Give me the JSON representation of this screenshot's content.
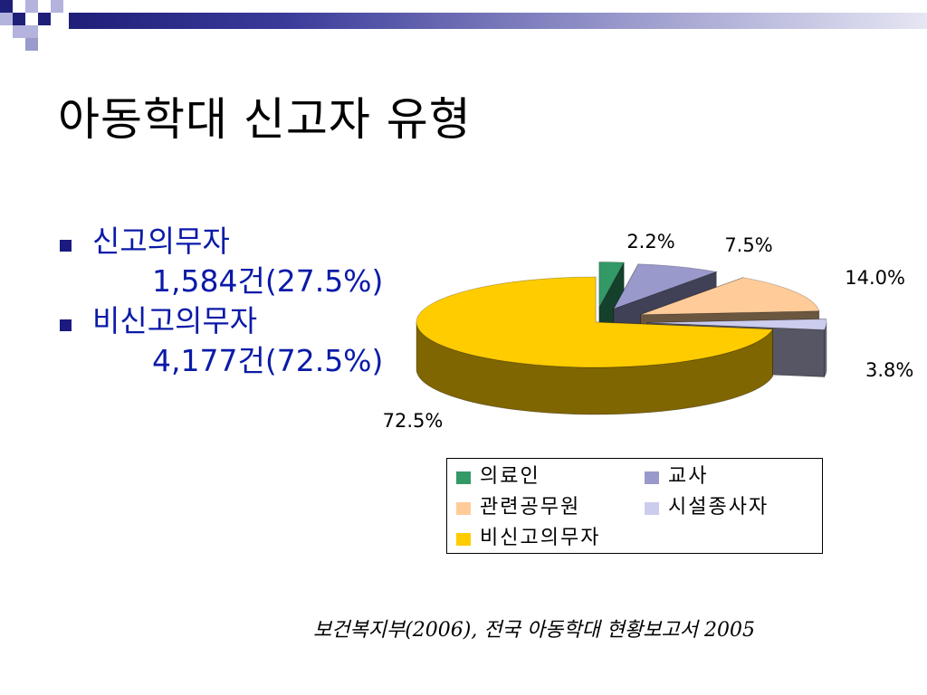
{
  "slide": {
    "title": "아동학대 신고자 유형",
    "source": "보건복지부(2006), 전국 아동학대 현황보고서 2005"
  },
  "bullets": [
    {
      "name": "신고의무자",
      "value": "1,584건(27.5%)"
    },
    {
      "name": "비신고의무자",
      "value": "4,177건(72.5%)"
    }
  ],
  "colors": {
    "bullet": "#1a1a80",
    "bullet_text": "#0a1aa8",
    "accent_dark": "#1f1f7a"
  },
  "chart_data": {
    "type": "pie",
    "style": "3d-exploded",
    "series": [
      {
        "name": "의료인",
        "value": 2.2,
        "label": "2.2%",
        "color": "#339966"
      },
      {
        "name": "교사",
        "value": 7.5,
        "label": "7.5%",
        "color": "#9999cc"
      },
      {
        "name": "관련공무원",
        "value": 14.0,
        "label": "14.0%",
        "color": "#ffcc99"
      },
      {
        "name": "시설종사자",
        "value": 3.8,
        "label": "3.8%",
        "color": "#ccccee"
      },
      {
        "name": "비신고의무자",
        "value": 72.5,
        "label": "72.5%",
        "color": "#ffcc00"
      }
    ],
    "legend_position": "bottom-right"
  }
}
